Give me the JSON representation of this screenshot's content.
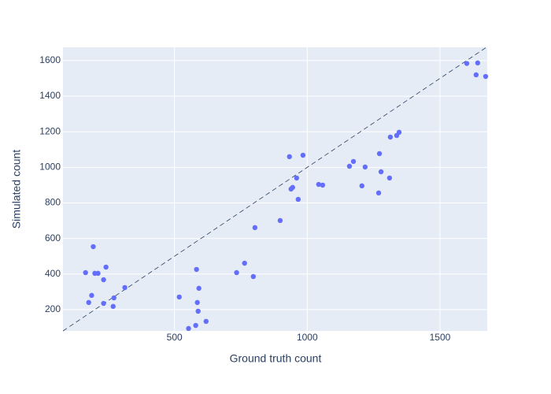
{
  "chart_data": {
    "type": "scatter",
    "x_label": "Ground truth count",
    "y_label": "Simulated count",
    "color": "#636efa",
    "grid": true,
    "reference_line": "y=x",
    "xlim": [
      80,
      1678
    ],
    "ylim": [
      80,
      1675
    ],
    "xticks": [
      500,
      1000,
      1500
    ],
    "yticks": [
      200,
      400,
      600,
      800,
      1000,
      1200,
      1400,
      1600
    ],
    "x": [
      165,
      194,
      200,
      212,
      242,
      233,
      188,
      177,
      233,
      272,
      269,
      313,
      518,
      583,
      586,
      592,
      589,
      580,
      553,
      619,
      734,
      764,
      797,
      803,
      898,
      933,
      939,
      945,
      960,
      966,
      984,
      1043,
      1058,
      1159,
      1174,
      1206,
      1218,
      1269,
      1272,
      1278,
      1310,
      1313,
      1337,
      1346,
      1601,
      1642,
      1636,
      1672
    ],
    "y": [
      408,
      554,
      404,
      404,
      439,
      368,
      280,
      240,
      235,
      266,
      218,
      324,
      271,
      426,
      240,
      320,
      191,
      111,
      94,
      134,
      408,
      461,
      386,
      661,
      701,
      1060,
      878,
      887,
      940,
      820,
      1068,
      904,
      900,
      1006,
      1033,
      896,
      1002,
      856,
      1077,
      975,
      940,
      1170,
      1179,
      1197,
      1584,
      1587,
      1520,
      1511
    ]
  }
}
